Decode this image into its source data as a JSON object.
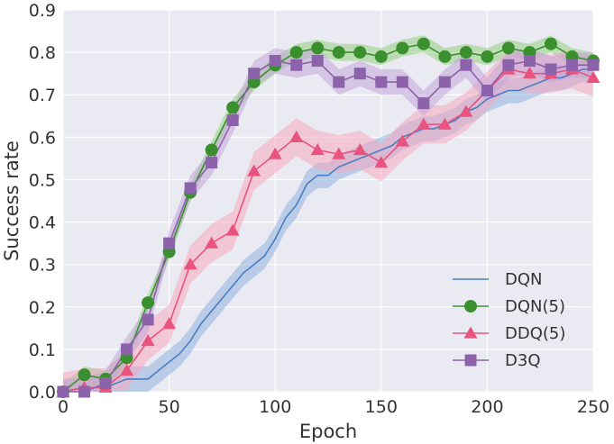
{
  "chart_data": {
    "type": "line",
    "title": "",
    "xlabel": "Epoch",
    "ylabel": "Success rate",
    "xlim": [
      0,
      250
    ],
    "ylim": [
      0,
      0.9
    ],
    "xticks": [
      0,
      50,
      100,
      150,
      200,
      250
    ],
    "xtick_labels": [
      "0",
      "50",
      "100",
      "150",
      "200",
      "250"
    ],
    "yticks": [
      0,
      0.1,
      0.2,
      0.3,
      0.4,
      0.5,
      0.6,
      0.7,
      0.8,
      0.9
    ],
    "ytick_labels": [
      "0.0",
      "0.1",
      "0.2",
      "0.3",
      "0.4",
      "0.5",
      "0.6",
      "0.7",
      "0.8",
      "0.9"
    ],
    "grid": true,
    "legend_position": "bottom-right",
    "background_color": "#eaeaf2",
    "series": [
      {
        "name": "DQN",
        "color": "#4a7ec0",
        "band_color": "#8fb0dc",
        "marker": "none",
        "x": [
          0,
          10,
          20,
          30,
          40,
          45,
          50,
          55,
          60,
          65,
          70,
          75,
          80,
          85,
          90,
          95,
          100,
          105,
          110,
          115,
          120,
          125,
          130,
          135,
          140,
          145,
          150,
          155,
          160,
          165,
          170,
          175,
          180,
          185,
          190,
          195,
          200,
          205,
          210,
          215,
          220,
          225,
          230,
          235,
          240,
          245,
          250
        ],
        "y": [
          0.0,
          0.01,
          0.01,
          0.03,
          0.03,
          0.05,
          0.07,
          0.09,
          0.12,
          0.16,
          0.19,
          0.22,
          0.25,
          0.28,
          0.3,
          0.32,
          0.36,
          0.41,
          0.44,
          0.49,
          0.51,
          0.51,
          0.53,
          0.54,
          0.55,
          0.56,
          0.57,
          0.58,
          0.6,
          0.61,
          0.62,
          0.62,
          0.63,
          0.64,
          0.66,
          0.67,
          0.69,
          0.7,
          0.71,
          0.71,
          0.72,
          0.73,
          0.74,
          0.74,
          0.75,
          0.76,
          0.76
        ],
        "band_halfwidth": 0.03
      },
      {
        "name": "DQN(5)",
        "color": "#3a8f2e",
        "band_color": "#94cf7f",
        "marker": "circle",
        "x": [
          0,
          10,
          20,
          30,
          40,
          50,
          60,
          70,
          80,
          90,
          100,
          110,
          120,
          130,
          140,
          150,
          160,
          170,
          180,
          190,
          200,
          210,
          220,
          230,
          240,
          250
        ],
        "y": [
          0.0,
          0.04,
          0.03,
          0.08,
          0.21,
          0.33,
          0.47,
          0.57,
          0.67,
          0.73,
          0.77,
          0.8,
          0.81,
          0.8,
          0.8,
          0.79,
          0.81,
          0.82,
          0.79,
          0.8,
          0.79,
          0.81,
          0.8,
          0.82,
          0.79,
          0.78
        ],
        "band_halfwidth": 0.02
      },
      {
        "name": "DDQ(5)",
        "color": "#e8537f",
        "band_color": "#f5a9c0",
        "marker": "triangle",
        "x": [
          0,
          10,
          20,
          30,
          40,
          50,
          60,
          70,
          80,
          90,
          100,
          110,
          120,
          130,
          140,
          150,
          160,
          170,
          180,
          190,
          200,
          210,
          220,
          230,
          240,
          250
        ],
        "y": [
          0.0,
          0.01,
          0.01,
          0.05,
          0.12,
          0.16,
          0.3,
          0.35,
          0.38,
          0.52,
          0.56,
          0.6,
          0.57,
          0.56,
          0.57,
          0.54,
          0.59,
          0.63,
          0.63,
          0.66,
          0.71,
          0.76,
          0.75,
          0.75,
          0.76,
          0.74
        ],
        "band_halfwidth": 0.045
      },
      {
        "name": "D3Q",
        "color": "#8c62aa",
        "band_color": "#c3a6d9",
        "marker": "square",
        "x": [
          0,
          10,
          20,
          30,
          40,
          50,
          60,
          70,
          80,
          90,
          100,
          110,
          120,
          130,
          140,
          150,
          160,
          170,
          180,
          190,
          200,
          210,
          220,
          230,
          240,
          250
        ],
        "y": [
          0.0,
          0.0,
          0.02,
          0.1,
          0.17,
          0.35,
          0.48,
          0.54,
          0.64,
          0.75,
          0.78,
          0.77,
          0.78,
          0.73,
          0.75,
          0.73,
          0.73,
          0.68,
          0.73,
          0.77,
          0.71,
          0.77,
          0.78,
          0.76,
          0.77,
          0.77
        ],
        "band_halfwidth": 0.03
      }
    ]
  }
}
